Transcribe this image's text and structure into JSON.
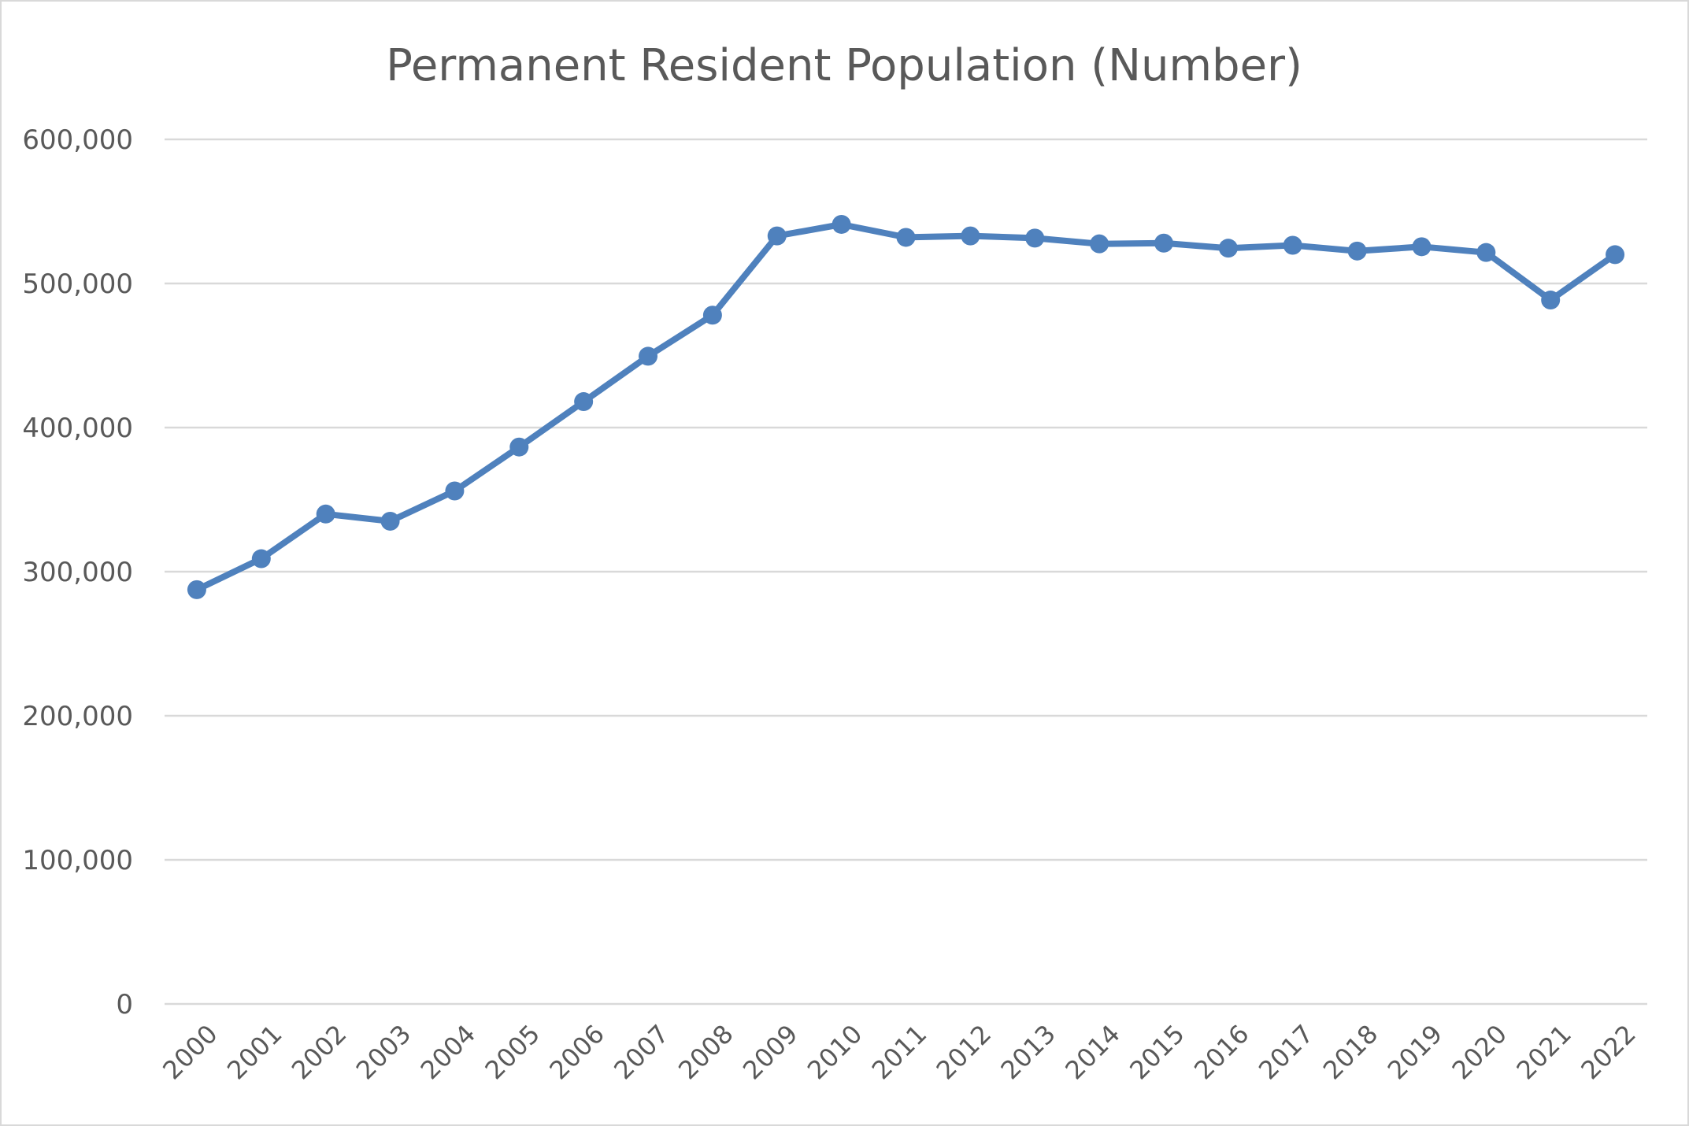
{
  "chart_data": {
    "type": "line",
    "title": "Permanent Resident Population (Number)",
    "xlabel": "",
    "ylabel": "",
    "ylim": [
      0,
      600000
    ],
    "y_ticks": [
      0,
      100000,
      200000,
      300000,
      400000,
      500000,
      600000
    ],
    "y_tick_labels": [
      "0",
      "100,000",
      "200,000",
      "300,000",
      "400,000",
      "500,000",
      "600,000"
    ],
    "grid": true,
    "legend": "none",
    "categories": [
      "2000",
      "2001",
      "2002",
      "2003",
      "2004",
      "2005",
      "2006",
      "2007",
      "2008",
      "2009",
      "2010",
      "2011",
      "2012",
      "2013",
      "2014",
      "2015",
      "2016",
      "2017",
      "2018",
      "2019",
      "2020",
      "2021",
      "2022"
    ],
    "series": [
      {
        "color": "#4f81bd",
        "values": [
          287500,
          309000,
          340000,
          335000,
          356000,
          386500,
          418000,
          449500,
          478000,
          533000,
          541000,
          532000,
          533000,
          531500,
          527500,
          528000,
          524500,
          526500,
          522500,
          525500,
          521500,
          488500,
          520000
        ]
      }
    ]
  }
}
